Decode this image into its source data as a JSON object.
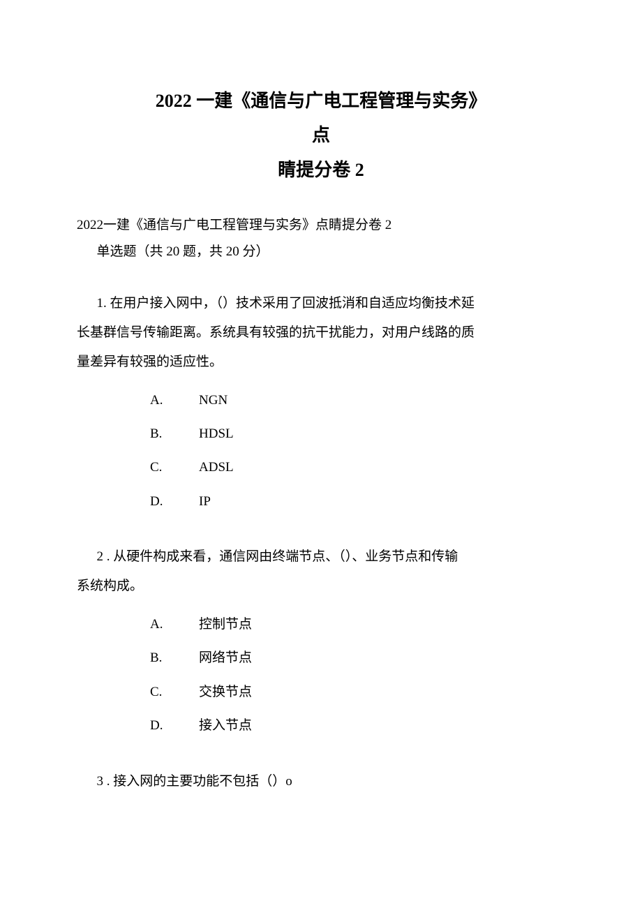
{
  "title": {
    "line1": "2022 一建《通信与广电工程管理与实务》",
    "line2": "点",
    "line3": "睛提分卷 2"
  },
  "subtitle": "2022一建《通信与广电工程管理与实务》点睛提分卷 2",
  "section_info": "单选题（共 20 题，共 20 分）",
  "questions": [
    {
      "stem_first": "1. 在用户接入网中，（）技术采用了回波抵消和自适应均衡技术延",
      "stem_lines": [
        "长基群信号传输距离。系统具有较强的抗干扰能力，对用户线路的质",
        "量差异有较强的适应性。"
      ],
      "options": [
        {
          "letter": "A.",
          "text": "NGN"
        },
        {
          "letter": "B.",
          "text": "HDSL"
        },
        {
          "letter": "C.",
          "text": "ADSL"
        },
        {
          "letter": "D.",
          "text": "IP"
        }
      ]
    },
    {
      "stem_first": "2 . 从硬件构成来看，通信网由终端节点、（）、业务节点和传输",
      "stem_lines": [
        "系统构成。"
      ],
      "options": [
        {
          "letter": "A.",
          "text": "控制节点"
        },
        {
          "letter": "B.",
          "text": "网络节点"
        },
        {
          "letter": "C.",
          "text": "交换节点"
        },
        {
          "letter": "D.",
          "text": "接入节点"
        }
      ]
    },
    {
      "stem_first": "3  . 接入网的主要功能不包括（）o",
      "stem_lines": [],
      "options": []
    }
  ]
}
